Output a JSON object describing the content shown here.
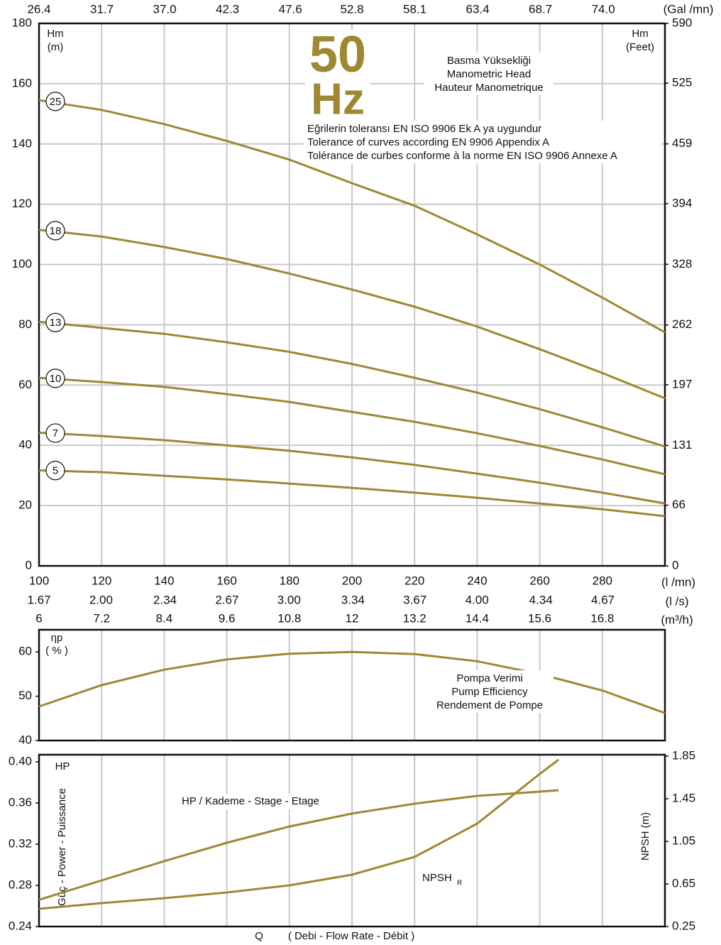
{
  "chart_data": [
    {
      "type": "line",
      "top_axis": {
        "label": "(Gal /mn)",
        "lim": [
          26.4,
          79.2
        ],
        "ticks": [
          26.4,
          31.7,
          {
            "value": 37,
            "label": "37.0"
          },
          42.3,
          47.6,
          52.8,
          58.1,
          63.4,
          68.7,
          {
            "value": 74,
            "label": "74.0"
          }
        ]
      },
      "xlabel": "(l /mn)",
      "xlim": [
        100,
        300
      ],
      "xticks": [
        100,
        120,
        140,
        160,
        180,
        200,
        220,
        240,
        260,
        280
      ],
      "extra_x_axes": [
        {
          "label": "(l /s)",
          "lim": [
            1.67,
            5.0
          ],
          "ticks": [
            1.67,
            {
              "value": 2,
              "label": "2.00"
            },
            2.34,
            2.67,
            {
              "value": 3,
              "label": "3.00"
            },
            3.34,
            3.67,
            {
              "value": 4,
              "label": "4.00"
            },
            4.34,
            4.67
          ]
        },
        {
          "label": "(m³/h)",
          "lim": [
            6,
            18
          ],
          "ticks": [
            6,
            7.2,
            8.4,
            9.6,
            10.8,
            12,
            13.2,
            14.4,
            15.6,
            16.8
          ]
        }
      ],
      "ylabel": [
        "Hm",
        "(m)"
      ],
      "y2label": [
        "Hm",
        "(Feet)"
      ],
      "ylim": [
        0,
        180
      ],
      "yticks": [
        0,
        20,
        40,
        60,
        80,
        100,
        120,
        140,
        160,
        180
      ],
      "y2lim": [
        0,
        590
      ],
      "y2ticks": [
        0,
        66,
        131,
        197,
        262,
        328,
        394,
        459,
        525,
        590
      ],
      "grid": true,
      "frequency": [
        "50",
        "Hz"
      ],
      "head_note": [
        "Basma Yüksekliği",
        "Manometric Head",
        "Hauteur Manometrique"
      ],
      "tolerance_note": [
        "Eğrilerin toleransı EN ISO 9906 Ek A ya uygundur",
        "Tolerance of curves according EN 9906 Appendix A",
        "Tolérance de curbes conforme à la norme EN ISO 9906 Annexe A"
      ],
      "x": [
        100,
        120,
        140,
        160,
        180,
        200,
        220,
        240,
        260,
        280,
        300
      ],
      "series": [
        {
          "name": "25",
          "color": "#9e8832",
          "values": [
            154.5,
            151.3,
            146.6,
            141,
            134.8,
            127,
            119.5,
            110,
            100,
            89,
            77.5
          ]
        },
        {
          "name": "18",
          "color": "#9e8832",
          "values": [
            111.5,
            109.3,
            105.8,
            101.8,
            97,
            91.7,
            86,
            79.4,
            71.9,
            64,
            55.6
          ]
        },
        {
          "name": "13",
          "color": "#9e8832",
          "values": [
            81,
            79,
            77,
            74.2,
            71,
            67,
            62.4,
            57.5,
            52,
            46,
            39.6
          ]
        },
        {
          "name": "10",
          "color": "#9e8832",
          "values": [
            62.4,
            61,
            59.4,
            57,
            54.4,
            51.1,
            47.8,
            44,
            39.8,
            35.3,
            30.4
          ]
        },
        {
          "name": "7",
          "color": "#9e8832",
          "values": [
            44.2,
            43.1,
            41.7,
            40,
            38.2,
            36,
            33.5,
            30.6,
            27.6,
            24.3,
            20.7
          ]
        },
        {
          "name": "5",
          "color": "#9e8832",
          "values": [
            31.7,
            31.1,
            29.9,
            28.7,
            27.3,
            25.9,
            24.3,
            22.6,
            20.7,
            18.8,
            16.5
          ]
        }
      ]
    },
    {
      "type": "line",
      "ylabel": [
        "ηp",
        "( % )"
      ],
      "xlim": [
        100,
        300
      ],
      "xticks": [
        100,
        120,
        140,
        160,
        180,
        200,
        220,
        240,
        260,
        280
      ],
      "ylim": [
        40,
        65
      ],
      "yticks": [
        40,
        50,
        60
      ],
      "note": [
        "Pompa Verimi",
        "Pump Efficiency",
        "Rendement de Pompe"
      ],
      "x": [
        100,
        120,
        140,
        160,
        180,
        200,
        220,
        240,
        260,
        280,
        300
      ],
      "values": [
        47.7,
        52.5,
        56,
        58.3,
        59.6,
        60,
        59.5,
        57.9,
        55,
        51.3,
        46.2
      ],
      "color": "#9e8832"
    },
    {
      "type": "line",
      "ylabel": "HP",
      "ylabel_rotated": "Güç - Power - Puissance",
      "y2label": "NPSH (m)",
      "xlabel": [
        "Q",
        "( Debi - Flow Rate - Débit )"
      ],
      "xlim": [
        100,
        300
      ],
      "xticks": [
        100,
        120,
        140,
        160,
        180,
        200,
        220,
        240,
        260,
        280
      ],
      "ylim": [
        0.24,
        0.4
      ],
      "yticks": [
        0.24,
        0.28,
        0.32,
        0.36,
        {
          "value": 0.4,
          "label": "0.40"
        }
      ],
      "y2lim": [
        0.25,
        1.85
      ],
      "y2ticks": [
        0.25,
        0.65,
        1.05,
        1.45,
        1.85
      ],
      "x": [
        100,
        120,
        140,
        160,
        180,
        200,
        220,
        240,
        260,
        266
      ],
      "series": [
        {
          "name": "HP / Kademe - Stage - Etage",
          "color": "#9e8832",
          "values": [
            0.266,
            0.2848,
            0.3035,
            0.3214,
            0.3372,
            0.3497,
            0.3593,
            0.3669,
            0.371,
            0.3724
          ]
        },
        {
          "name": "NPSH",
          "name_subscript": "R",
          "axis": "y2",
          "color": "#9e8832",
          "values": [
            0.417,
            0.47,
            0.517,
            0.57,
            0.637,
            0.737,
            0.903,
            1.217,
            1.683,
            1.817
          ]
        }
      ]
    }
  ]
}
